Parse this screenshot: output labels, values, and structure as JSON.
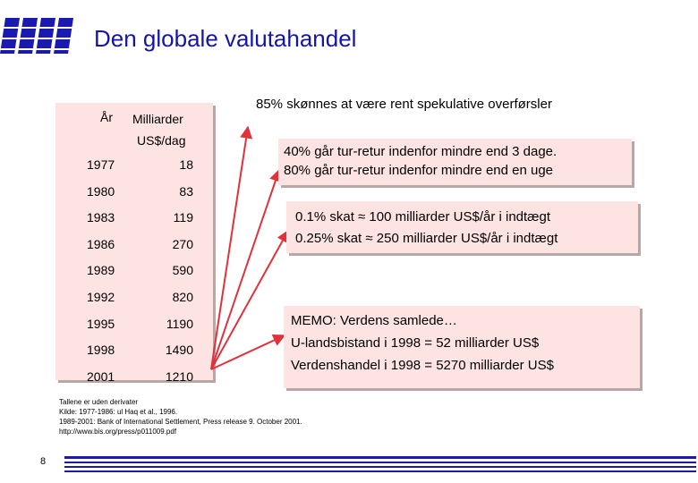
{
  "slide": {
    "title": "Den globale valutahandel",
    "page_number": "8"
  },
  "table": {
    "col_year": "År",
    "col_value_line1": "Milliarder",
    "col_value_line2": "US$/dag",
    "rows": [
      {
        "year": "1977",
        "value": "18"
      },
      {
        "year": "1980",
        "value": "83"
      },
      {
        "year": "1983",
        "value": "119"
      },
      {
        "year": "1986",
        "value": "270"
      },
      {
        "year": "1989",
        "value": "590"
      },
      {
        "year": "1992",
        "value": "820"
      },
      {
        "year": "1995",
        "value": "1190"
      },
      {
        "year": "1998",
        "value": "1490"
      },
      {
        "year": "2001",
        "value": "1210"
      }
    ]
  },
  "callouts": {
    "speculative": "85% skønnes at være rent spekulative overførsler",
    "roundtrip_line1": "40% går tur-retur indenfor mindre end 3 dage.",
    "roundtrip_line2": "80% går tur-retur indenfor mindre end en uge",
    "tax_line1": "0.1% skat ≈ 100 milliarder US$/år i indtægt",
    "tax_line2": "0.25% skat ≈ 250 milliarder US$/år i indtægt",
    "memo_line1": "MEMO: Verdens samlede…",
    "memo_line2": "U-landsbistand i 1998 = 52 milliarder US$",
    "memo_line3": "Verdenshandel i 1998 = 5270 milliarder US$"
  },
  "footnote": {
    "line1": "Tallene er uden derivater",
    "line2": "Kilde: 1977-1986: ul Haq et al., 1996.",
    "line3": "1989-2001: Bank of International Settlement, Press release 9. October 2001.",
    "line4": "http://www.bis.org/press/p011009.pdf"
  },
  "colors": {
    "title": "#1414a8",
    "callout_fill": "#fde4e2",
    "arrow": "#e0323a",
    "logo": "#1a1ab0"
  }
}
